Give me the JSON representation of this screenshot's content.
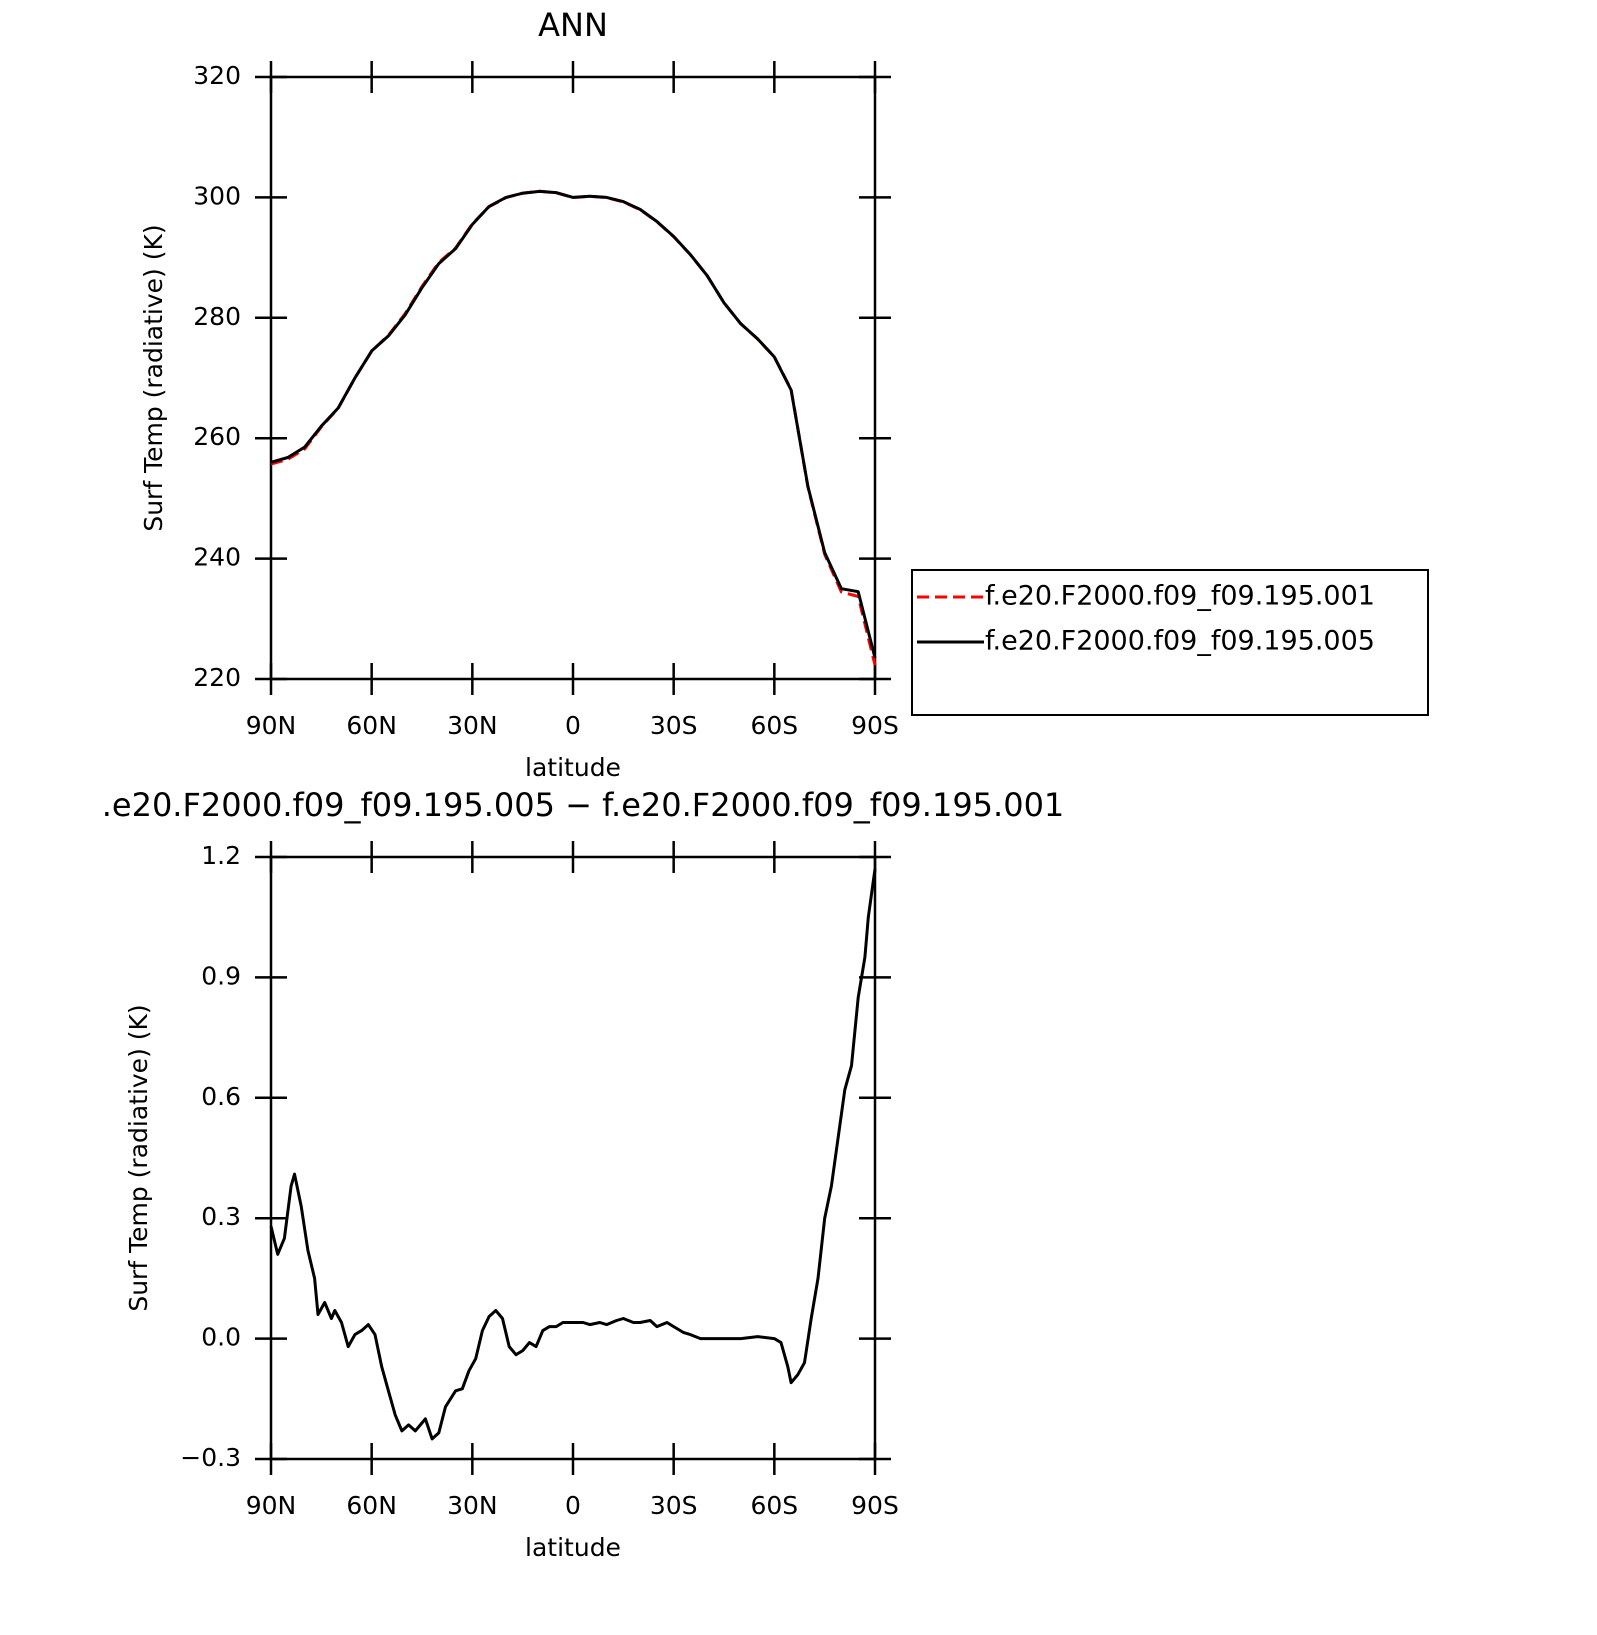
{
  "chart_data": [
    {
      "type": "line",
      "title": "ANN",
      "xlabel": "latitude",
      "ylabel": "Surf Temp (radiative) (K)",
      "x": [
        90,
        85,
        80,
        75,
        70,
        65,
        60,
        55,
        50,
        45,
        40,
        35,
        30,
        25,
        20,
        15,
        10,
        5,
        0,
        -5,
        -10,
        -15,
        -20,
        -25,
        -30,
        -35,
        -40,
        -45,
        -50,
        -55,
        -60,
        -65,
        -70,
        -75,
        -80,
        -85,
        -90
      ],
      "series": [
        {
          "name": "f.e20.F2000.f09_f09.195.001",
          "color": "#ff0000",
          "dash": true,
          "values": [
            255.7,
            256.5,
            258.2,
            261.9,
            264.95,
            270,
            274.47,
            277.1,
            280.7,
            285.2,
            289.2,
            291.6,
            295.6,
            298.45,
            299.95,
            300.72,
            301.02,
            300.77,
            299.96,
            300.16,
            299.96,
            299.25,
            297.96,
            295.97,
            293.47,
            290.49,
            287,
            282.5,
            279,
            276.5,
            273.5,
            268.1,
            251.9,
            240.7,
            234.45,
            233.7,
            222.3
          ]
        },
        {
          "name": "f.e20.F2000.f09_f09.195.005",
          "color": "#000000",
          "dash": false,
          "values": [
            256,
            256.8,
            258.5,
            262,
            265,
            270,
            274.5,
            277,
            280.5,
            285,
            289,
            291.5,
            295.5,
            298.5,
            300,
            300.7,
            301,
            300.8,
            300,
            300.2,
            300,
            299.3,
            298,
            296,
            293.5,
            290.5,
            287,
            282.5,
            279,
            276.5,
            273.5,
            268,
            252,
            241,
            235,
            234.5,
            223.5
          ]
        }
      ],
      "xlim": [
        90,
        -90
      ],
      "xticks": [
        {
          "value": 90,
          "label": "90N"
        },
        {
          "value": 60,
          "label": "60N"
        },
        {
          "value": 30,
          "label": "30N"
        },
        0,
        {
          "value": -30,
          "label": "30S"
        },
        {
          "value": -60,
          "label": "60S"
        },
        {
          "value": -90,
          "label": "90S"
        }
      ],
      "ylim": [
        220,
        320
      ],
      "yticks": [
        220,
        240,
        260,
        280,
        300,
        320
      ],
      "legend": "right"
    },
    {
      "type": "line",
      "title": ".e20.F2000.f09_f09.195.005 − f.e20.F2000.f09_f09.195.001",
      "xlabel": "latitude",
      "ylabel": "Surf Temp (radiative) (K)",
      "x": [
        90,
        88,
        86,
        84,
        83,
        81,
        79,
        77,
        76,
        74,
        72,
        71,
        69,
        67,
        65,
        63,
        61,
        59,
        57,
        55,
        53,
        51,
        49,
        47,
        44,
        42,
        40,
        38,
        35,
        33,
        31,
        29,
        27,
        25,
        23,
        21,
        19,
        17,
        15,
        13,
        11,
        9,
        7,
        5,
        3,
        0,
        -3,
        -5,
        -8,
        -10,
        -13,
        -15,
        -18,
        -20,
        -23,
        -25,
        -28,
        -30,
        -33,
        -35,
        -38,
        -42,
        -50,
        -55,
        -60,
        -62,
        -64,
        -65,
        -67,
        -69,
        -71,
        -73,
        -75,
        -77,
        -79,
        -81,
        -83,
        -85,
        -87,
        -88,
        -90
      ],
      "values": [
        0.28,
        0.21,
        0.25,
        0.38,
        0.41,
        0.33,
        0.22,
        0.15,
        0.06,
        0.09,
        0.05,
        0.07,
        0.04,
        -0.02,
        0.01,
        0.02,
        0.035,
        0.01,
        -0.07,
        -0.13,
        -0.19,
        -0.23,
        -0.215,
        -0.23,
        -0.2,
        -0.25,
        -0.235,
        -0.17,
        -0.13,
        -0.125,
        -0.08,
        -0.05,
        0.02,
        0.055,
        0.07,
        0.05,
        -0.02,
        -0.04,
        -0.03,
        -0.01,
        -0.02,
        0.02,
        0.03,
        0.03,
        0.04,
        0.04,
        0.04,
        0.035,
        0.04,
        0.035,
        0.045,
        0.05,
        0.04,
        0.04,
        0.045,
        0.03,
        0.04,
        0.03,
        0.015,
        0.01,
        0,
        0,
        0,
        0.005,
        0,
        -0.01,
        -0.07,
        -0.11,
        -0.09,
        -0.06,
        0.05,
        0.15,
        0.3,
        0.38,
        0.5,
        0.62,
        0.68,
        0.85,
        0.95,
        1.05,
        1.17
      ],
      "color": "#000000",
      "xlim": [
        90,
        -90
      ],
      "xticks": [
        {
          "value": 90,
          "label": "90N"
        },
        {
          "value": 60,
          "label": "60N"
        },
        {
          "value": 30,
          "label": "30N"
        },
        0,
        {
          "value": -30,
          "label": "30S"
        },
        {
          "value": -60,
          "label": "60S"
        },
        {
          "value": -90,
          "label": "90S"
        }
      ],
      "ylim": [
        -0.3,
        1.2
      ],
      "yticks": [
        {
          "value": -0.3,
          "label": "−0.3"
        },
        {
          "value": 0,
          "label": "0.0"
        },
        0.3,
        0.6,
        0.9,
        1.2
      ]
    }
  ]
}
